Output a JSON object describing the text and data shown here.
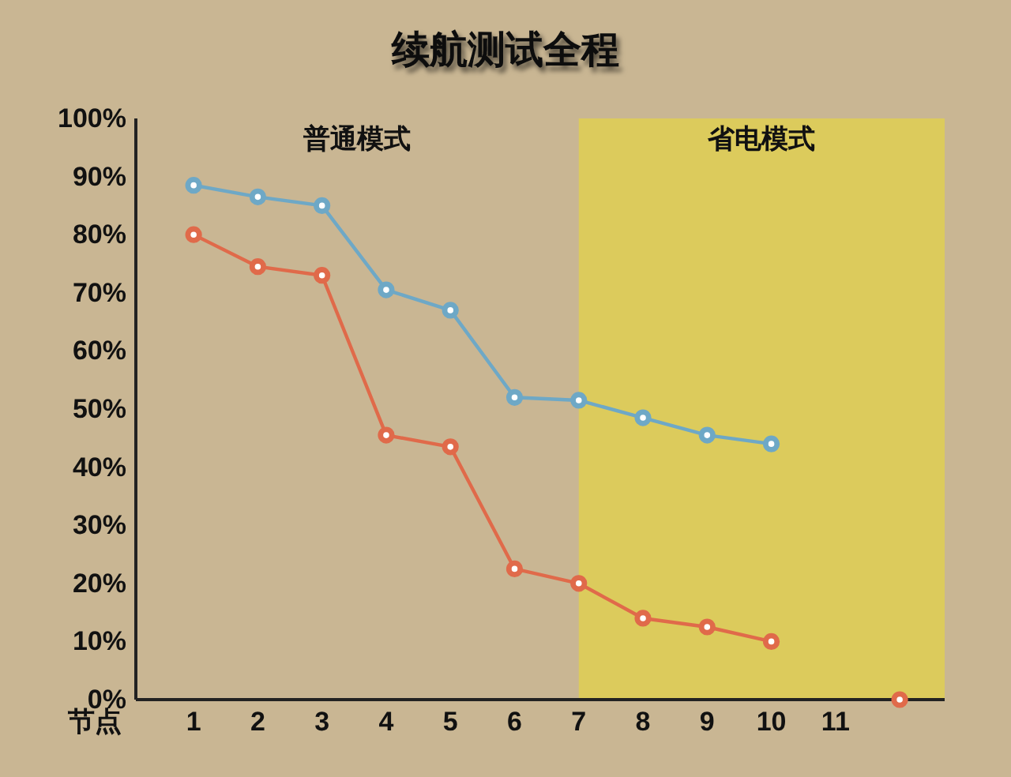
{
  "chart_data": {
    "type": "line",
    "title": "续航测试全程",
    "xlabel": "节点",
    "x": [
      1,
      2,
      3,
      4,
      5,
      6,
      7,
      8,
      9,
      10
    ],
    "xlim": [
      0.1,
      12.7
    ],
    "xticks": [
      1,
      2,
      3,
      4,
      5,
      6,
      7,
      8,
      9,
      10,
      11
    ],
    "ylim": [
      0,
      100
    ],
    "yticks": [
      {
        "value": 0,
        "label": "0%"
      },
      {
        "value": 10,
        "label": "10%"
      },
      {
        "value": 20,
        "label": "20%"
      },
      {
        "value": 30,
        "label": "30%"
      },
      {
        "value": 40,
        "label": "40%"
      },
      {
        "value": 50,
        "label": "50%"
      },
      {
        "value": 60,
        "label": "60%"
      },
      {
        "value": 70,
        "label": "70%"
      },
      {
        "value": 80,
        "label": "80%"
      },
      {
        "value": 90,
        "label": "90%"
      },
      {
        "value": 100,
        "label": "100%"
      }
    ],
    "marker": "circle",
    "line_style": "solid",
    "series": [
      {
        "color": "#6ea8c6",
        "values": [
          88.5,
          86.5,
          85,
          70.5,
          67,
          52,
          51.5,
          48.5,
          45.5,
          44
        ]
      },
      {
        "color": "#e06a4a",
        "values": [
          80,
          74.5,
          73,
          45.5,
          43.5,
          22.5,
          20,
          14,
          12.5,
          10
        ]
      },
      {
        "type": "scatter",
        "color": "#e06a4a",
        "x": [
          12
        ],
        "values": [
          0
        ]
      }
    ],
    "bands": [
      {
        "axis": "x",
        "from": 7,
        "to": 12.7,
        "label": "省电模式",
        "color": "#dccb5c"
      }
    ],
    "annotations": [
      "普通模式"
    ]
  }
}
